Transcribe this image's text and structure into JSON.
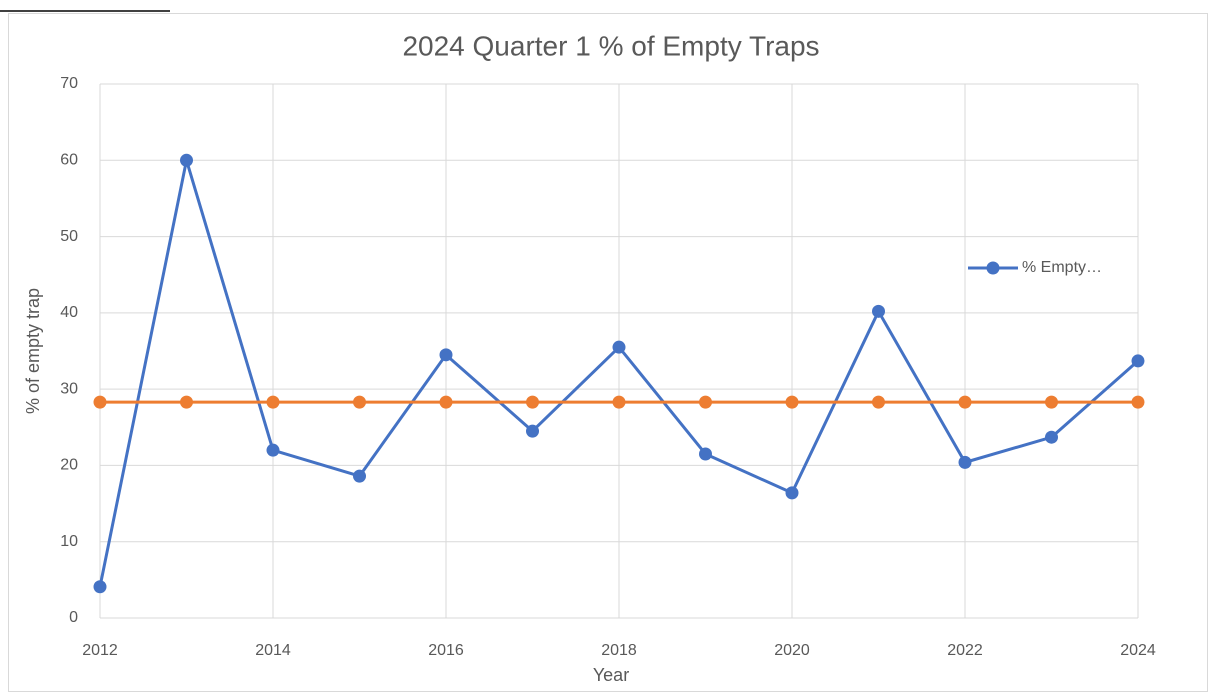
{
  "chart_data": {
    "type": "line",
    "title": "2024 Quarter 1 % of Empty Traps",
    "xlabel": "Year",
    "ylabel": "% of empty trap",
    "x": [
      2012,
      2013,
      2014,
      2015,
      2016,
      2017,
      2018,
      2019,
      2020,
      2021,
      2022,
      2023,
      2024
    ],
    "series": [
      {
        "name": "% Empty…",
        "color": "#4472c4",
        "values": [
          4.1,
          60,
          22.0,
          18.6,
          34.5,
          24.5,
          35.5,
          21.5,
          16.4,
          40.2,
          20.4,
          23.7,
          33.7
        ]
      },
      {
        "color": "#ed7d31",
        "values": [
          28.3,
          28.3,
          28.3,
          28.3,
          28.3,
          28.3,
          28.3,
          28.3,
          28.3,
          28.3,
          28.3,
          28.3,
          28.3
        ]
      }
    ],
    "xlim": [
      2012,
      2024
    ],
    "xticks": [
      2012,
      2014,
      2016,
      2018,
      2020,
      2022,
      2024
    ],
    "ylim": [
      0,
      70
    ],
    "yticks": [
      0,
      10,
      20,
      30,
      40,
      50,
      60,
      70
    ],
    "grid": true,
    "legend": "right"
  }
}
